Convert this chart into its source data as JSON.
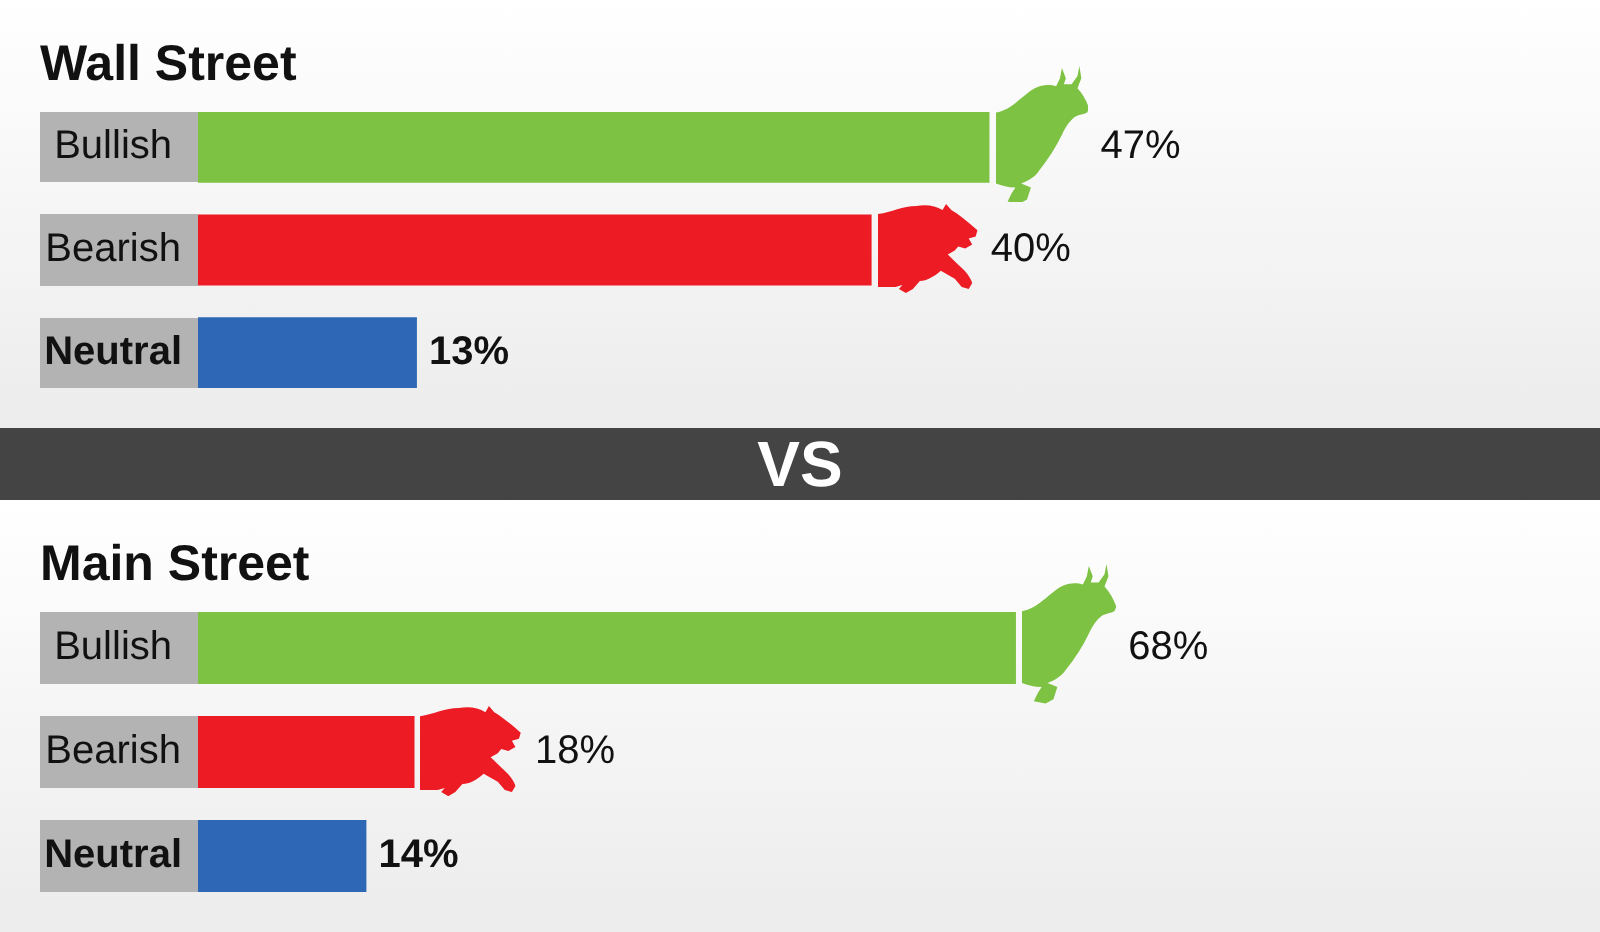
{
  "chart_data": [
    {
      "type": "bar",
      "orientation": "horizontal",
      "title": "Wall Street",
      "categories": [
        "Bullish",
        "Bearish",
        "Neutral"
      ],
      "values": [
        47,
        40,
        13
      ],
      "colors": [
        "#7dc242",
        "#ed1c24",
        "#2e67b5"
      ],
      "value_labels": [
        "47%",
        "40%",
        "13%"
      ],
      "tick_labels": "y",
      "grid": false,
      "legend": false
    },
    {
      "type": "other",
      "title": "VS"
    },
    {
      "type": "bar",
      "orientation": "horizontal",
      "title": "Main Street",
      "categories": [
        "Bullish",
        "Bearish",
        "Neutral"
      ],
      "values": [
        68,
        18,
        14
      ],
      "colors": [
        "#7dc242",
        "#ed1c24",
        "#2e67b5"
      ],
      "value_labels": [
        "68%",
        "18%",
        "14%"
      ],
      "tick_labels": "y",
      "grid": false,
      "legend": false
    }
  ]
}
